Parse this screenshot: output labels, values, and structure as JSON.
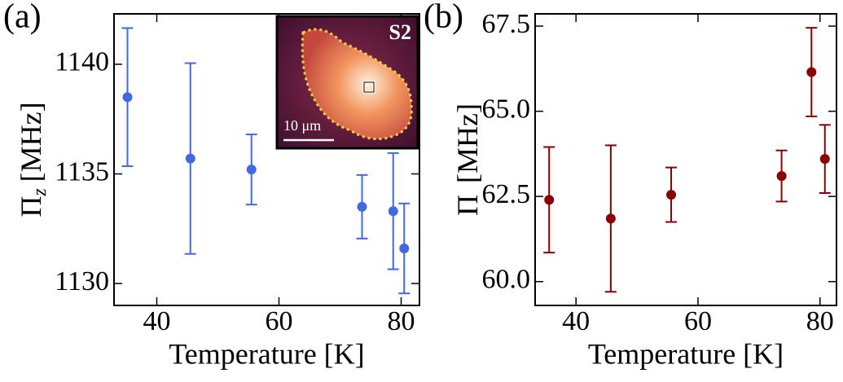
{
  "chart_data": [
    {
      "type": "errorbar",
      "panel_label": "(a)",
      "xlabel": "Temperature [K]",
      "ylabel": "Π",
      "ylabel_subscript": "z",
      "ylabel_unit": "[MHz]",
      "x": [
        35.2,
        45.5,
        55.5,
        73.6,
        78.7,
        80.5
      ],
      "series": [
        {
          "color": "#4169e1",
          "values": [
            1138.5,
            1135.7,
            1135.2,
            1133.5,
            1133.3,
            1131.6
          ],
          "errors": [
            3.15,
            4.35,
            1.6,
            1.45,
            2.65,
            2.05
          ]
        }
      ],
      "xlim": [
        33,
        83
      ],
      "xticks": [
        40,
        60,
        80
      ],
      "ylim": [
        1129,
        1142.3
      ],
      "yticks": [
        1130,
        1135,
        1140
      ],
      "inset": {
        "label": "S2",
        "scale": "10 μm"
      }
    },
    {
      "type": "errorbar",
      "panel_label": "(b)",
      "xlabel": "Temperature [K]",
      "ylabel": "Π",
      "ylabel_unit": "[MHz]",
      "x": [
        35.6,
        45.7,
        55.6,
        73.7,
        78.6,
        80.8
      ],
      "series": [
        {
          "color": "#8b0000",
          "values": [
            62.4,
            61.85,
            62.55,
            63.1,
            66.15,
            63.6
          ],
          "errors": [
            1.55,
            2.15,
            0.8,
            0.75,
            1.3,
            1.0
          ]
        }
      ],
      "xlim": [
        33.3,
        82.7
      ],
      "xticks": [
        40,
        60,
        80
      ],
      "ylim": [
        59.3,
        67.86
      ],
      "yticks": [
        {
          "value": 60,
          "label": "60.0"
        },
        {
          "value": 62.5,
          "label": "62.5"
        },
        {
          "value": 65,
          "label": "65.0"
        },
        {
          "value": 67.5,
          "label": "67.5"
        }
      ]
    }
  ]
}
